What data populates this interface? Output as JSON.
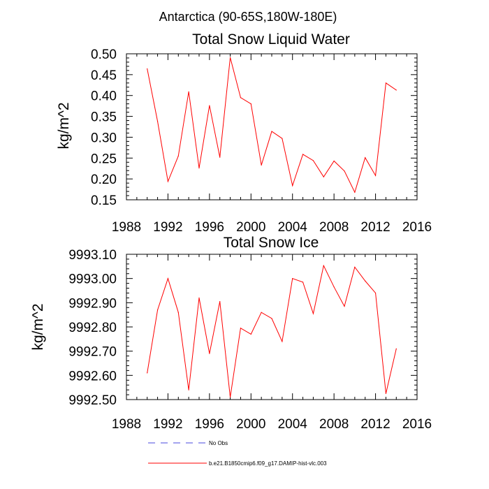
{
  "figure_title": "Antarctica (90-65S,180W-180E)",
  "legend": [
    {
      "label": "No Obs",
      "color": "#4a4adf",
      "dashed": true
    },
    {
      "label": "b.e21.B1850cmip6.f09_g17.DAMIP-hist-vlc.003",
      "color": "#ff0000",
      "dashed": false
    }
  ],
  "chart_data": [
    {
      "type": "line",
      "title": "Total Snow Liquid Water",
      "xlabel": "",
      "ylabel": "kg/m^2",
      "xlim": [
        1988,
        2016
      ],
      "ylim": [
        0.15,
        0.5
      ],
      "xticks": [
        1988,
        1992,
        1996,
        2000,
        2004,
        2008,
        2012,
        2016
      ],
      "xtick_labels": [
        "1988",
        "1992",
        "1996",
        "2000",
        "2004",
        "2008",
        "2012",
        "2016"
      ],
      "yticks": [
        0.15,
        0.2,
        0.25,
        0.3,
        0.35,
        0.4,
        0.45,
        0.5
      ],
      "ytick_labels": [
        "0.15",
        "0.20",
        "0.25",
        "0.30",
        "0.35",
        "0.40",
        "0.45",
        "0.50"
      ],
      "series": [
        {
          "name": "b.e21.B1850cmip6.f09_g17.DAMIP-hist-vlc.003",
          "color": "#ff0000",
          "x": [
            1990,
            1991,
            1992,
            1993,
            1994,
            1995,
            1996,
            1997,
            1998,
            1999,
            2000,
            2001,
            2002,
            2003,
            2004,
            2005,
            2006,
            2007,
            2008,
            2009,
            2010,
            2011,
            2012,
            2013,
            2014
          ],
          "y": [
            0.464,
            0.338,
            0.194,
            0.255,
            0.409,
            0.226,
            0.376,
            0.252,
            0.491,
            0.395,
            0.38,
            0.233,
            0.314,
            0.297,
            0.184,
            0.259,
            0.244,
            0.205,
            0.243,
            0.219,
            0.168,
            0.251,
            0.208,
            0.43,
            0.413
          ]
        }
      ]
    },
    {
      "type": "line",
      "title": "Total Snow Ice",
      "xlabel": "",
      "ylabel": "kg/m^2",
      "xlim": [
        1988,
        2016
      ],
      "ylim": [
        9992.5,
        9993.1
      ],
      "xticks": [
        1988,
        1992,
        1996,
        2000,
        2004,
        2008,
        2012,
        2016
      ],
      "xtick_labels": [
        "1988",
        "1992",
        "1996",
        "2000",
        "2004",
        "2008",
        "2012",
        "2016"
      ],
      "yticks": [
        9992.5,
        9992.6,
        9992.7,
        9992.8,
        9992.9,
        9993.0,
        9993.1
      ],
      "ytick_labels": [
        "9992.50",
        "9992.60",
        "9992.70",
        "9992.80",
        "9992.90",
        "9993.00",
        "9993.10"
      ],
      "series": [
        {
          "name": "b.e21.B1850cmip6.f09_g17.DAMIP-hist-vlc.003",
          "color": "#ff0000",
          "x": [
            1990,
            1991,
            1992,
            1993,
            1994,
            1995,
            1996,
            1997,
            1998,
            1999,
            2000,
            2001,
            2002,
            2003,
            2004,
            2005,
            2006,
            2007,
            2008,
            2009,
            2010,
            2011,
            2012,
            2013,
            2014
          ],
          "y": [
            9992.61,
            9992.87,
            9993.0,
            9992.86,
            9992.54,
            9992.92,
            9992.69,
            9992.905,
            9992.51,
            9992.795,
            9992.77,
            9992.86,
            9992.835,
            9992.74,
            9993.0,
            9992.985,
            9992.855,
            9993.053,
            9992.965,
            9992.885,
            9993.047,
            9992.99,
            9992.94,
            9992.525,
            9992.71
          ]
        }
      ]
    }
  ]
}
